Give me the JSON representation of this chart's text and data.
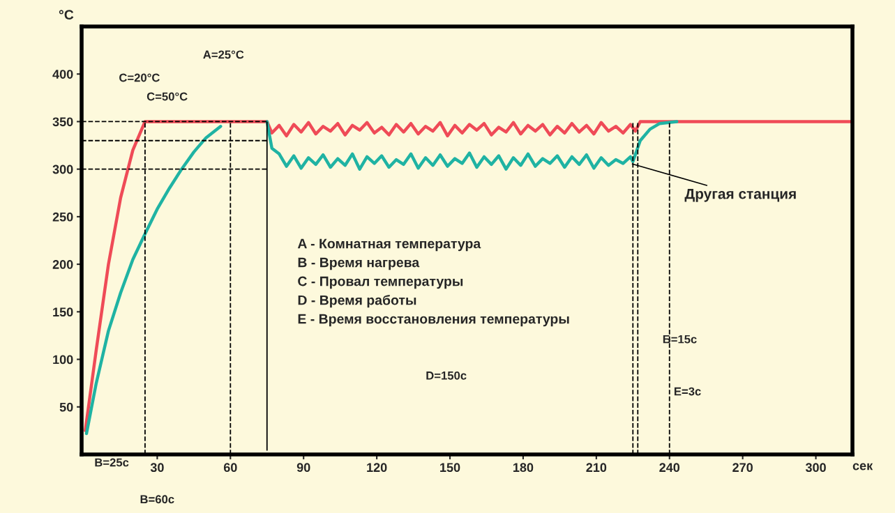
{
  "chart_data": {
    "type": "line",
    "xlabel": "сек",
    "ylabel": "°C",
    "xlim": [
      -1,
      315
    ],
    "ylim": [
      0,
      450
    ],
    "xticks": [
      30,
      60,
      90,
      120,
      150,
      180,
      210,
      240,
      270,
      300
    ],
    "yticks": [
      50,
      100,
      150,
      200,
      250,
      300,
      350,
      400
    ],
    "grid": false,
    "legend": false,
    "marker": "none",
    "line_style": "solid",
    "series": [
      {
        "color": "#ef4b57",
        "x": [
          0.5,
          5,
          10,
          15,
          20,
          25,
          75,
          77,
          80,
          83,
          86,
          89,
          92,
          95,
          98,
          101,
          104,
          107,
          110,
          113,
          116,
          119,
          122,
          125,
          128,
          131,
          134,
          137,
          140,
          143,
          146,
          149,
          152,
          155,
          158,
          161,
          164,
          167,
          170,
          173,
          176,
          179,
          182,
          185,
          188,
          191,
          194,
          197,
          200,
          203,
          206,
          209,
          212,
          215,
          218,
          221,
          224,
          226,
          228,
          315
        ],
        "values": [
          25,
          110,
          200,
          270,
          320,
          350,
          350,
          338,
          346,
          335,
          347,
          339,
          349,
          337,
          345,
          340,
          348,
          336,
          346,
          341,
          349,
          338,
          344,
          336,
          347,
          339,
          348,
          337,
          345,
          340,
          349,
          335,
          346,
          338,
          347,
          341,
          348,
          336,
          344,
          339,
          349,
          337,
          346,
          340,
          347,
          336,
          345,
          338,
          348,
          339,
          346,
          337,
          349,
          340,
          345,
          338,
          347,
          340,
          350,
          350
        ]
      },
      {
        "color": "#1fb3a3",
        "x": [
          1,
          5,
          10,
          15,
          20,
          25,
          30,
          35,
          40,
          45,
          50,
          56,
          65,
          75,
          77,
          80,
          83,
          86,
          89,
          92,
          95,
          98,
          101,
          104,
          107,
          110,
          113,
          116,
          119,
          122,
          125,
          128,
          131,
          134,
          137,
          140,
          143,
          146,
          149,
          152,
          155,
          158,
          161,
          164,
          167,
          170,
          173,
          176,
          179,
          182,
          185,
          188,
          191,
          194,
          197,
          200,
          203,
          206,
          209,
          212,
          215,
          218,
          221,
          224,
          225,
          228,
          232,
          236,
          243
        ],
        "values": [
          22,
          75,
          130,
          170,
          205,
          232,
          258,
          280,
          300,
          318,
          333,
          345,
          null,
          350,
          322,
          316,
          303,
          314,
          301,
          312,
          305,
          315,
          302,
          311,
          304,
          316,
          300,
          313,
          306,
          314,
          302,
          310,
          305,
          316,
          301,
          312,
          304,
          315,
          303,
          311,
          306,
          317,
          302,
          313,
          305,
          314,
          300,
          312,
          304,
          316,
          303,
          311,
          306,
          314,
          302,
          313,
          305,
          315,
          301,
          312,
          304,
          310,
          306,
          313,
          308,
          330,
          342,
          348,
          350
        ]
      }
    ],
    "ref_lines": [
      {
        "axis": "y",
        "value": 350,
        "line_style": "dashed"
      },
      {
        "axis": "y",
        "value": 330,
        "line_style": "dashed"
      },
      {
        "axis": "y",
        "value": 300,
        "line_style": "dashed"
      },
      {
        "axis": "x",
        "value": 25,
        "line_style": "dashed"
      },
      {
        "axis": "x",
        "value": 60,
        "line_style": "dashed"
      },
      {
        "axis": "x",
        "value": 75,
        "line_style": "solid"
      },
      {
        "axis": "x",
        "value": 225,
        "line_style": "dashed"
      },
      {
        "axis": "x",
        "value": 227,
        "line_style": "dashed"
      },
      {
        "axis": "x",
        "value": 240,
        "line_style": "dashed"
      }
    ],
    "annotations": [
      "A=25°C",
      "C=20°C",
      "C=50°C",
      "D=150с",
      "Б=15с",
      "E=3с",
      "B=25с",
      "B=60с",
      {
        "text": "Другая станция",
        "x": 224,
        "y": 306
      },
      "A - Комнатная температура",
      "B - Время нагрева",
      "C - Провал температуры",
      "D - Время работы",
      "E - Время восстановления температуры"
    ]
  }
}
